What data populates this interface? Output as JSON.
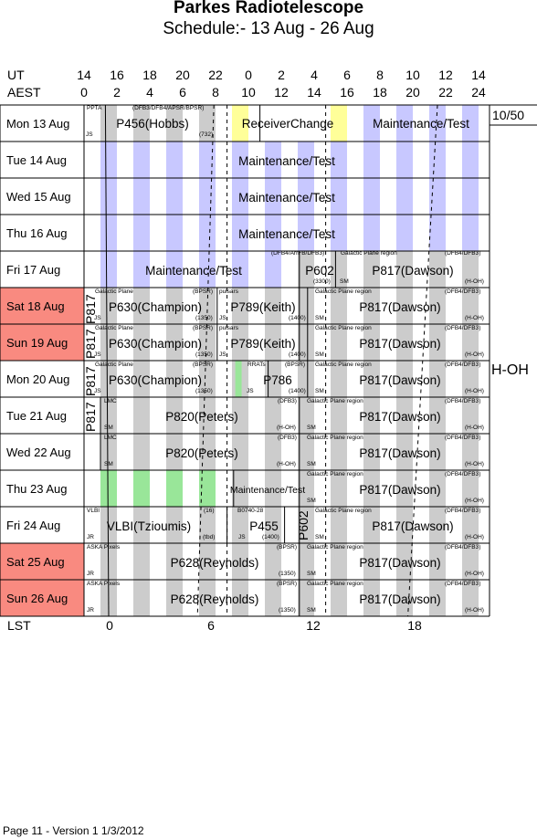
{
  "header": {
    "title": "Parkes Radiotelescope",
    "subtitle": "Schedule:- 13 Aug - 26 Aug"
  },
  "axes": {
    "ut_label": "UT",
    "aest_label": "AEST",
    "lst_label": "LST",
    "ut_hours": [
      "14",
      "16",
      "18",
      "20",
      "22",
      "0",
      "2",
      "4",
      "6",
      "8",
      "10",
      "12",
      "14"
    ],
    "aest_hours": [
      "0",
      "2",
      "4",
      "6",
      "8",
      "10",
      "12",
      "14",
      "16",
      "18",
      "20",
      "22",
      "24"
    ],
    "lst_hours": [
      "0",
      "6",
      "12",
      "18"
    ]
  },
  "days": [
    {
      "label": "Mon  13 Aug",
      "weekend": false
    },
    {
      "label": "Tue   14 Aug",
      "weekend": false
    },
    {
      "label": "Wed  15 Aug",
      "weekend": false
    },
    {
      "label": "Thu   16 Aug",
      "weekend": false
    },
    {
      "label": "Fri    17 Aug",
      "weekend": false
    },
    {
      "label": "Sat   18 Aug",
      "weekend": true
    },
    {
      "label": "Sun  19 Aug",
      "weekend": true
    },
    {
      "label": "Mon  20 Aug",
      "weekend": false
    },
    {
      "label": "Tue   21 Aug",
      "weekend": false
    },
    {
      "label": "Wed  22 Aug",
      "weekend": false
    },
    {
      "label": "Thu   23 Aug",
      "weekend": false
    },
    {
      "label": "Fri    24 Aug",
      "weekend": false
    },
    {
      "label": "Sat   25 Aug",
      "weekend": true
    },
    {
      "label": "Sun  26 Aug",
      "weekend": true
    }
  ],
  "sidebar": {
    "week_count": "10/50",
    "receiver": "H-OH"
  },
  "blocks": {
    "d0_p456": "P456(Hobbs)",
    "d0_pta": "PPTA",
    "d0_rx": "(DFB3/DFB4/APSR/BPSR)",
    "d0_js": "JS",
    "d0_732": "(732)",
    "d0_rc": "ReceiverChange",
    "d0_mt": "Maintenance/Test",
    "d1_mt": "Maintenance/Test",
    "d2_mt": "Maintenance/Test",
    "d3_mt": "Maintenance/Test",
    "d4_mt": "Maintenance/Test",
    "d4_p602": "P602",
    "d4_p602_rx": "(DFB4/ArrFB/DFB3)",
    "d4_p602_3300": "(3300)",
    "d4_gp": "Galactic Plane region",
    "d4_gp_rx": "(DFB4/DFB3)",
    "d4_sm": "SM",
    "d4_hoh": "(H-OH)",
    "d4_p817": "P817(Dawson)",
    "d5_p630": "P630(Champion)",
    "d5_gp": "Galactic Plane",
    "d5_bpsr": "(BPSR)",
    "d5_js": "JS",
    "d5_1350": "(1350)",
    "d5_puls": "pulsars",
    "d5_p789": "P789(Keith)",
    "d5_js2": "JS",
    "d5_1400": "(1400)",
    "d5_gpr": "Galactic Plane region",
    "d5_dfb": "(DFB4/DFB3)",
    "d5_sm": "SM",
    "d5_hoh": "(H-OH)",
    "d5_p817": "P817(Dawson)",
    "d6_p630": "P630(Champion)",
    "d6_gp": "Galactic Plane",
    "d6_bpsr": "(BPSR)",
    "d6_js": "JS",
    "d6_1350": "(1350)",
    "d6_puls": "pulsars",
    "d6_p789": "P789(Keith)",
    "d6_js2": "JS",
    "d6_1400": "(1400)",
    "d6_gpr": "Galactic Plane region",
    "d6_dfb": "(DFB4/DFB3)",
    "d6_sm": "SM",
    "d6_hoh": "(H-OH)",
    "d6_p817": "P817(Dawson)",
    "d7_p630": "P630(Champion)",
    "d7_gp": "Galactic Plane",
    "d7_bpsr": "(BPSR)",
    "d7_js": "JS",
    "d7_1350": "(1350)",
    "d7_rrat": "RRATs",
    "d7_bpsr2": "(BPSR)",
    "d7_p786": "P786",
    "d7_js2": "JS",
    "d7_1400": "(1400)",
    "d7_gpr": "Galactic Plane region",
    "d7_dfb": "(DFB4/DFB3)",
    "d7_sm": "SM",
    "d7_hoh": "(H-OH)",
    "d7_p817": "P817(Dawson)",
    "p817_vert": "P817",
    "d8_lmc": "LMC",
    "d8_dfb3": "(DFB3)",
    "d8_sm": "SM",
    "d8_hoh": "(H-OH)",
    "d8_p820": "P820(Peters)",
    "d8_gpr": "Galactic Plane region",
    "d8_dfb": "(DFB4/DFB3)",
    "d8_sm2": "SM",
    "d8_hoh2": "(H-OH)",
    "d8_p817": "P817(Dawson)",
    "d9_lmc": "LMC",
    "d9_dfb3": "(DFB3)",
    "d9_sm": "SM",
    "d9_hoh": "(H-OH)",
    "d9_p820": "P820(Peters)",
    "d9_gpr": "Galactic Plane region",
    "d9_dfb": "(DFB4/DFB3)",
    "d9_sm2": "SM",
    "d9_hoh2": "(H-OH)",
    "d9_p817": "P817(Dawson)",
    "d10_mt": "Maintenance/Test",
    "d10_gpr": "Galactic Plane region",
    "d10_dfb": "(DFB4/DFB3)",
    "d10_sm": "SM",
    "d10_hoh": "(H-OH)",
    "d10_p817": "P817(Dawson)",
    "d11_vlbi_t": "VLBI",
    "d11_16": "(16)",
    "d11_jr": "JR",
    "d11_tbd": "(tbd)",
    "d11_vlbi": "VLBI(Tzioumis)",
    "d11_b0740": "B0740-28",
    "d11_js": "JS",
    "d11_1400": "(1400)",
    "d11_p455": "P455",
    "d11_p602": "P602",
    "d11_gpr": "Galactic Plane region",
    "d11_dfb": "(DFB4/DFB3)",
    "d11_sm": "SM",
    "d11_hoh": "(H-OH)",
    "d11_p817": "P817(Dawson)",
    "d12_ask": "ASKA Pixels",
    "d12_bpsr": "(BPSR)",
    "d12_jr": "JR",
    "d12_1350": "(1350)",
    "d12_p628": "P628(Reynolds)",
    "d12_gpr": "Galactic Plane region",
    "d12_dfb": "(DFB4/DFB3)",
    "d12_sm": "SM",
    "d12_hoh": "(H-OH)",
    "d12_p817": "P817(Dawson)",
    "d13_ask": "ASKA Pixels",
    "d13_bpsr": "(BPSR)",
    "d13_jr": "JR",
    "d13_1350": "(1350)",
    "d13_p628": "P628(Reynolds)",
    "d13_gpr": "Galactic Plane region",
    "d13_dfb": "(DFB4/DFB3)",
    "d13_sm": "SM",
    "d13_hoh": "(H-OH)",
    "d13_p817": "P817(Dawson)"
  },
  "footer": {
    "text": "Page 11 - Version 1  1/3/2012"
  },
  "colors": {
    "weekend": "#f98a80",
    "night_stripe": "#cccccc",
    "maintenance_stripe": "#c8c8ff",
    "receiver_change": "#ffff99",
    "green": "#99e699"
  }
}
